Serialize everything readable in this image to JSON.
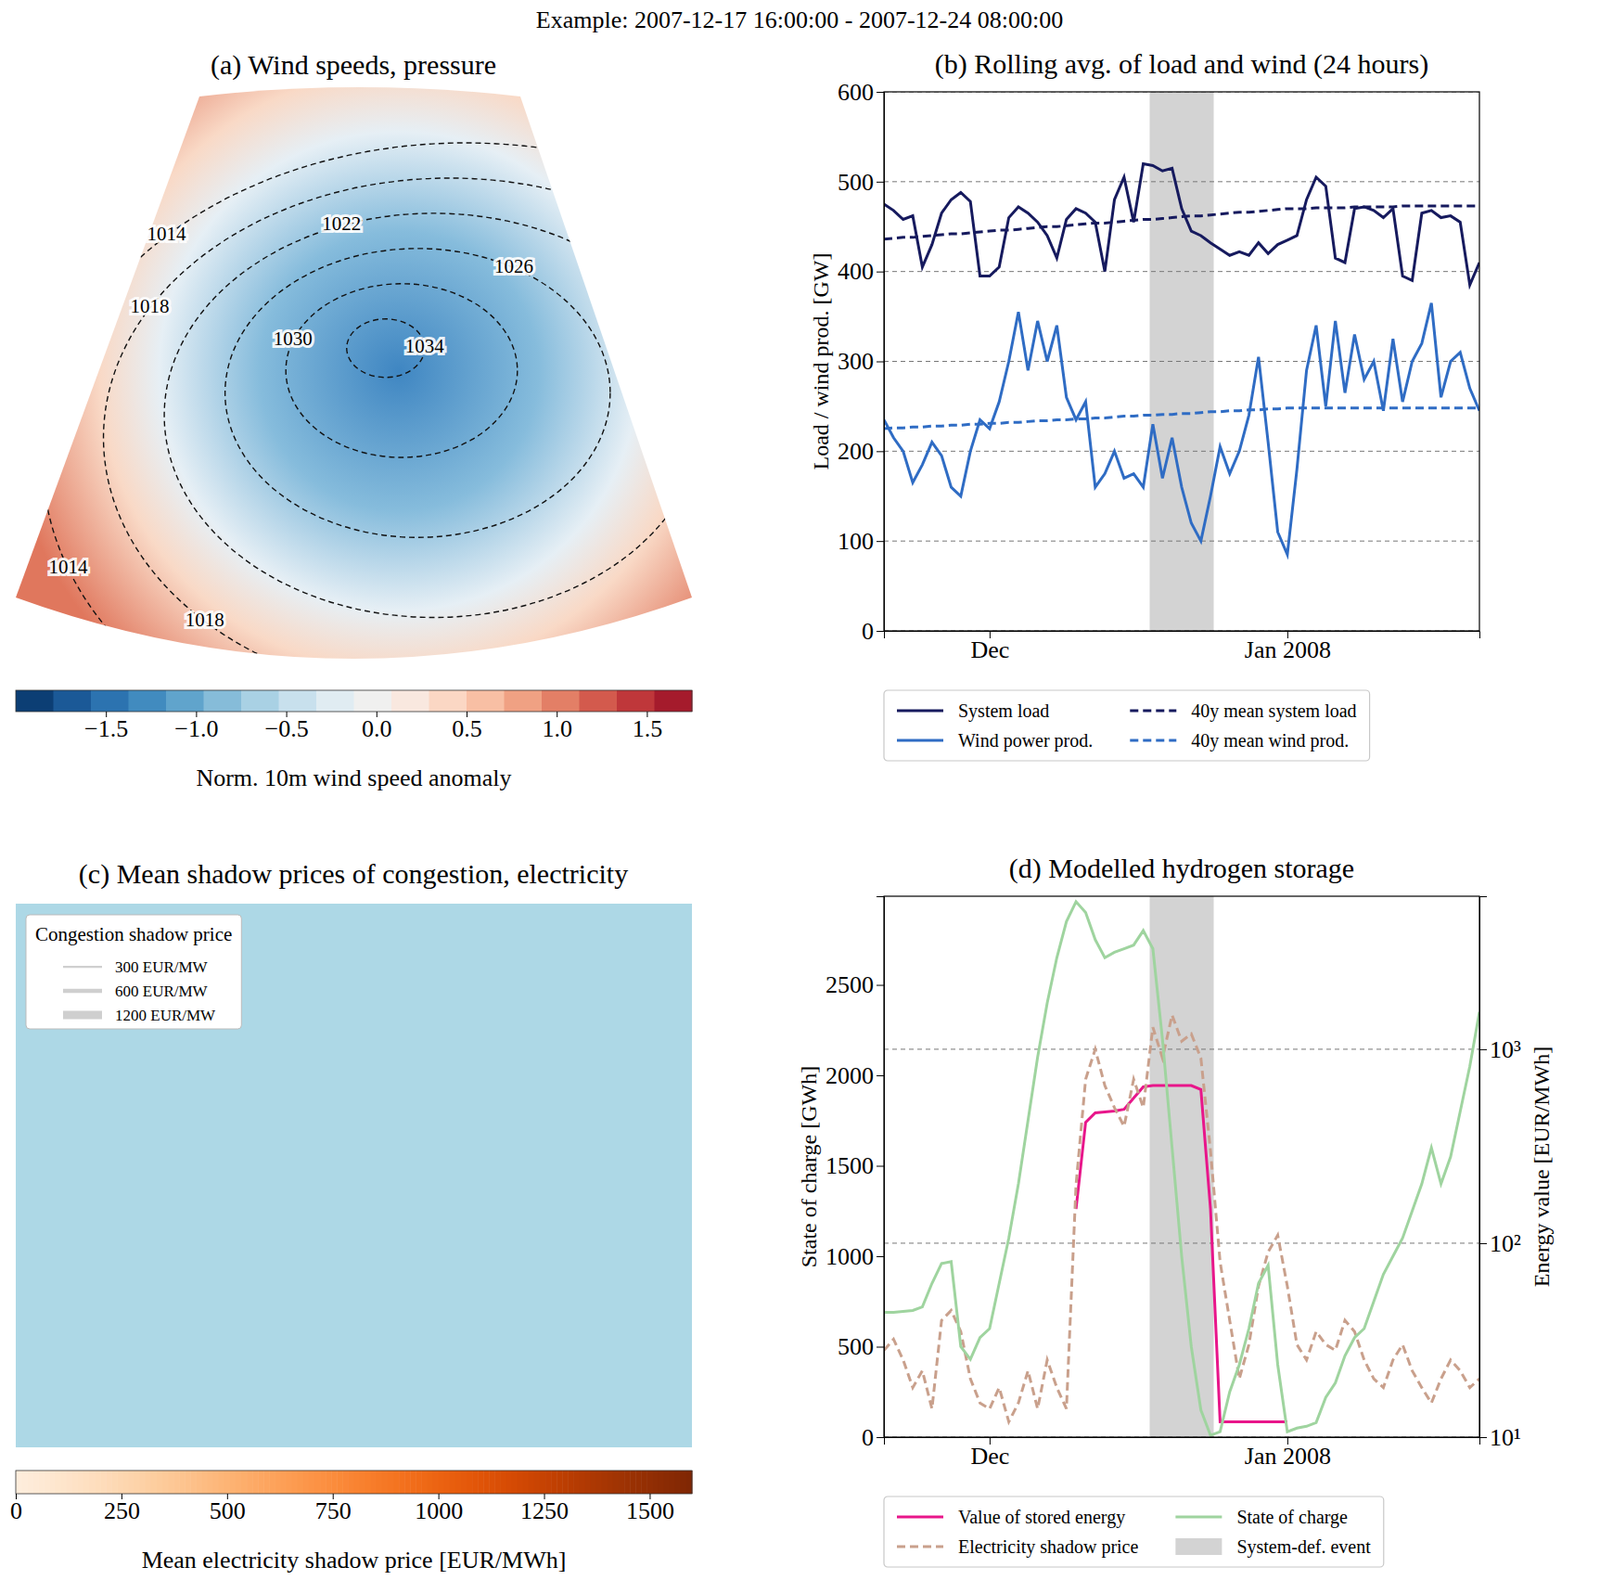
{
  "title": "Example: 2007-12-17 16:00:00 - 2007-12-24 08:00:00",
  "chart_data": [
    {
      "type": "map",
      "title": "(a) Wind speeds, pressure",
      "contour_levels": [
        1014,
        1018,
        1022,
        1026,
        1030,
        1034
      ],
      "contour_labels": [
        1014,
        1022,
        1026,
        1018,
        1030,
        1034,
        1014,
        1018
      ],
      "colorbar": {
        "label": "Norm. 10m wind speed anomaly",
        "range": [
          -2.0,
          1.75
        ],
        "ticks": [
          {
            "value": -1.5,
            "label": "−1.5"
          },
          {
            "value": -1.0,
            "label": "−1.0"
          },
          {
            "value": -0.5,
            "label": "−0.5"
          },
          {
            "value": 0.0,
            "label": "0.0"
          },
          {
            "value": 0.5,
            "label": "0.5"
          },
          {
            "value": 1.0,
            "label": "1.0"
          },
          {
            "value": 1.5,
            "label": "1.5"
          }
        ]
      }
    },
    {
      "type": "line",
      "title": "(b) Rolling avg. of load and wind (24 hours)",
      "x": [
        "2007-11-20",
        "2007-11-21",
        "2007-11-22",
        "2007-11-23",
        "2007-11-24",
        "2007-11-25",
        "2007-11-26",
        "2007-11-27",
        "2007-11-28",
        "2007-11-29",
        "2007-11-30",
        "2007-12-01",
        "2007-12-02",
        "2007-12-03",
        "2007-12-04",
        "2007-12-05",
        "2007-12-06",
        "2007-12-07",
        "2007-12-08",
        "2007-12-09",
        "2007-12-10",
        "2007-12-11",
        "2007-12-12",
        "2007-12-13",
        "2007-12-14",
        "2007-12-15",
        "2007-12-16",
        "2007-12-17",
        "2007-12-18",
        "2007-12-19",
        "2007-12-20",
        "2007-12-21",
        "2007-12-22",
        "2007-12-23",
        "2007-12-24",
        "2007-12-25",
        "2007-12-26",
        "2007-12-27",
        "2007-12-28",
        "2007-12-29",
        "2007-12-30",
        "2007-12-31",
        "2008-01-01",
        "2008-01-02",
        "2008-01-03",
        "2008-01-04",
        "2008-01-05",
        "2008-01-06",
        "2008-01-07",
        "2008-01-08",
        "2008-01-09",
        "2008-01-10",
        "2008-01-11",
        "2008-01-12",
        "2008-01-13",
        "2008-01-14",
        "2008-01-15",
        "2008-01-16",
        "2008-01-17",
        "2008-01-18",
        "2008-01-19",
        "2008-01-20",
        "2008-01-21"
      ],
      "xlim": [
        "2007-11-20",
        "2008-01-21"
      ],
      "xticks": [
        {
          "value": "2007-12-01",
          "label": "Dec"
        },
        {
          "value": "2008-01-01",
          "label": "Jan 2008"
        }
      ],
      "ylim": [
        0,
        600
      ],
      "yticks": [
        0,
        100,
        200,
        300,
        400,
        500,
        600
      ],
      "y_label": "Load / wind prod. [GW]",
      "grid": true,
      "legend": "bottom",
      "highlight": {
        "start": "2007-12-17 16:00",
        "end": "2007-12-24 08:00"
      },
      "series": [
        {
          "name": "System load",
          "color": "#161a5e",
          "line_style": "solid",
          "values": [
            475,
            468,
            458,
            462,
            405,
            430,
            465,
            480,
            488,
            478,
            395,
            395,
            405,
            460,
            472,
            465,
            455,
            440,
            415,
            458,
            470,
            465,
            455,
            400,
            480,
            505,
            455,
            520,
            518,
            512,
            515,
            470,
            445,
            440,
            432,
            425,
            418,
            422,
            418,
            432,
            420,
            430,
            435,
            440,
            480,
            505,
            495,
            415,
            410,
            470,
            472,
            468,
            460,
            470,
            395,
            390,
            465,
            468,
            460,
            462,
            455,
            385,
            410
          ]
        },
        {
          "name": "Wind power prod.",
          "color": "#2f6cc4",
          "line_style": "solid",
          "values": [
            235,
            215,
            200,
            165,
            185,
            210,
            195,
            160,
            150,
            200,
            235,
            225,
            255,
            300,
            355,
            290,
            345,
            300,
            340,
            260,
            235,
            255,
            160,
            175,
            200,
            170,
            175,
            160,
            230,
            170,
            215,
            160,
            120,
            100,
            150,
            205,
            175,
            200,
            240,
            305,
            210,
            110,
            85,
            180,
            290,
            340,
            250,
            345,
            265,
            330,
            280,
            300,
            245,
            325,
            255,
            300,
            320,
            365,
            260,
            300,
            310,
            270,
            245
          ]
        },
        {
          "name": "40y mean system load",
          "color": "#161a5e",
          "line_style": "dashed",
          "values": [
            436,
            437,
            438,
            438,
            439,
            440,
            441,
            442,
            442,
            443,
            444,
            445,
            446,
            446,
            447,
            448,
            449,
            450,
            450,
            451,
            452,
            453,
            454,
            454,
            455,
            456,
            457,
            458,
            458,
            459,
            460,
            461,
            462,
            462,
            463,
            464,
            465,
            466,
            466,
            467,
            468,
            469,
            470,
            470,
            470,
            471,
            471,
            471,
            471,
            472,
            472,
            472,
            472,
            472,
            473,
            473,
            473,
            473,
            473,
            473,
            473,
            473,
            473
          ]
        },
        {
          "name": "40y mean wind prod.",
          "color": "#2f6cc4",
          "line_style": "dashed",
          "values": [
            225,
            226,
            226,
            227,
            227,
            228,
            228,
            229,
            229,
            230,
            230,
            231,
            231,
            232,
            232,
            233,
            234,
            234,
            235,
            235,
            236,
            236,
            237,
            237,
            238,
            239,
            239,
            240,
            240,
            241,
            241,
            242,
            242,
            243,
            244,
            244,
            245,
            245,
            246,
            246,
            247,
            247,
            248,
            248,
            248,
            248,
            248,
            248,
            248,
            248,
            248,
            248,
            248,
            248,
            248,
            248,
            248,
            248,
            248,
            248,
            248,
            248,
            248
          ]
        }
      ]
    },
    {
      "type": "map",
      "title": "(c) Mean shadow prices of congestion, electricity",
      "legend_title": "Congestion shadow price",
      "line_widths": [
        {
          "value": 300,
          "label": "300 EUR/MW"
        },
        {
          "value": 600,
          "label": "600 EUR/MW"
        },
        {
          "value": 1200,
          "label": "1200 EUR/MW"
        }
      ],
      "colorbar": {
        "label": "Mean electricity shadow price [EUR/MWh]",
        "range": [
          0,
          1600
        ],
        "ticks": [
          0,
          250,
          500,
          750,
          1000,
          1250,
          1500
        ]
      }
    },
    {
      "type": "line",
      "title": "(d) Modelled hydrogen storage",
      "x": [
        "2007-11-20",
        "2007-11-21",
        "2007-11-22",
        "2007-11-23",
        "2007-11-24",
        "2007-11-25",
        "2007-11-26",
        "2007-11-27",
        "2007-11-28",
        "2007-11-29",
        "2007-11-30",
        "2007-12-01",
        "2007-12-02",
        "2007-12-03",
        "2007-12-04",
        "2007-12-05",
        "2007-12-06",
        "2007-12-07",
        "2007-12-08",
        "2007-12-09",
        "2007-12-10",
        "2007-12-11",
        "2007-12-12",
        "2007-12-13",
        "2007-12-14",
        "2007-12-15",
        "2007-12-16",
        "2007-12-17",
        "2007-12-18",
        "2007-12-19",
        "2007-12-20",
        "2007-12-21",
        "2007-12-22",
        "2007-12-23",
        "2007-12-24",
        "2007-12-25",
        "2007-12-26",
        "2007-12-27",
        "2007-12-28",
        "2007-12-29",
        "2007-12-30",
        "2007-12-31",
        "2008-01-01",
        "2008-01-02",
        "2008-01-03",
        "2008-01-04",
        "2008-01-05",
        "2008-01-06",
        "2008-01-07",
        "2008-01-08",
        "2008-01-09",
        "2008-01-10",
        "2008-01-11",
        "2008-01-12",
        "2008-01-13",
        "2008-01-14",
        "2008-01-15",
        "2008-01-16",
        "2008-01-17",
        "2008-01-18",
        "2008-01-19",
        "2008-01-20",
        "2008-01-21"
      ],
      "xlim": [
        "2007-11-20",
        "2008-01-21"
      ],
      "xticks": [
        {
          "value": "2007-12-01",
          "label": "Dec"
        },
        {
          "value": "2008-01-01",
          "label": "Jan 2008"
        }
      ],
      "ylim": [
        0,
        2990
      ],
      "yticks": [
        0,
        500,
        1000,
        1500,
        2000,
        2500
      ],
      "y_label": "State of charge [GWh]",
      "y2lim": [
        10,
        6150
      ],
      "y2ticks": [
        {
          "value": 10,
          "label": "10¹"
        },
        {
          "value": 100,
          "label": "10²"
        },
        {
          "value": 1000,
          "label": "10³"
        }
      ],
      "y2_label": "Energy value [EUR/MWh]",
      "log": "y2",
      "grid": true,
      "legend": "bottom",
      "highlight": {
        "start": "2007-12-17 16:00",
        "end": "2007-12-24 08:00",
        "label": "System-def. event"
      },
      "series": [
        {
          "name": "Value of stored energy",
          "color": "#e8168a",
          "line_style": "solid",
          "axis": "y2",
          "values": [
            null,
            null,
            null,
            null,
            null,
            null,
            null,
            null,
            null,
            null,
            null,
            null,
            null,
            null,
            null,
            null,
            null,
            null,
            null,
            null,
            150,
            420,
            470,
            475,
            480,
            490,
            560,
            640,
            650,
            650,
            650,
            650,
            650,
            620,
            150,
            12,
            12,
            12,
            12,
            12,
            12,
            12,
            12,
            null,
            null,
            null,
            null,
            null,
            null,
            null,
            null,
            null,
            null,
            null,
            null,
            null,
            null,
            null,
            null,
            null,
            null,
            null,
            null
          ]
        },
        {
          "name": "Electricity shadow price",
          "color": "#c9a08c",
          "line_style": "dashed",
          "axis": "y2",
          "values": [
            28,
            32,
            25,
            18,
            22,
            14,
            40,
            45,
            35,
            20,
            15,
            14,
            18,
            12,
            15,
            22,
            14,
            25,
            18,
            14,
            200,
            700,
            1000,
            650,
            500,
            400,
            700,
            500,
            1300,
            900,
            1500,
            1100,
            1200,
            900,
            300,
            80,
            40,
            20,
            30,
            60,
            90,
            110,
            60,
            30,
            25,
            35,
            30,
            28,
            40,
            35,
            25,
            20,
            18,
            25,
            30,
            22,
            18,
            15,
            20,
            25,
            22,
            18,
            20
          ]
        },
        {
          "name": "State of charge",
          "color": "#9fd49f",
          "line_style": "solid",
          "values": [
            690,
            690,
            695,
            700,
            720,
            850,
            960,
            970,
            500,
            430,
            550,
            600,
            850,
            1100,
            1400,
            1750,
            2100,
            2400,
            2650,
            2850,
            2960,
            2900,
            2750,
            2650,
            2680,
            2700,
            2720,
            2800,
            2700,
            2200,
            1600,
            1000,
            500,
            150,
            10,
            30,
            250,
            400,
            600,
            850,
            950,
            400,
            30,
            50,
            60,
            80,
            220,
            300,
            450,
            550,
            600,
            750,
            900,
            1000,
            1100,
            1250,
            1400,
            1600,
            1400,
            1550,
            1800,
            2050,
            2350
          ]
        }
      ]
    }
  ]
}
